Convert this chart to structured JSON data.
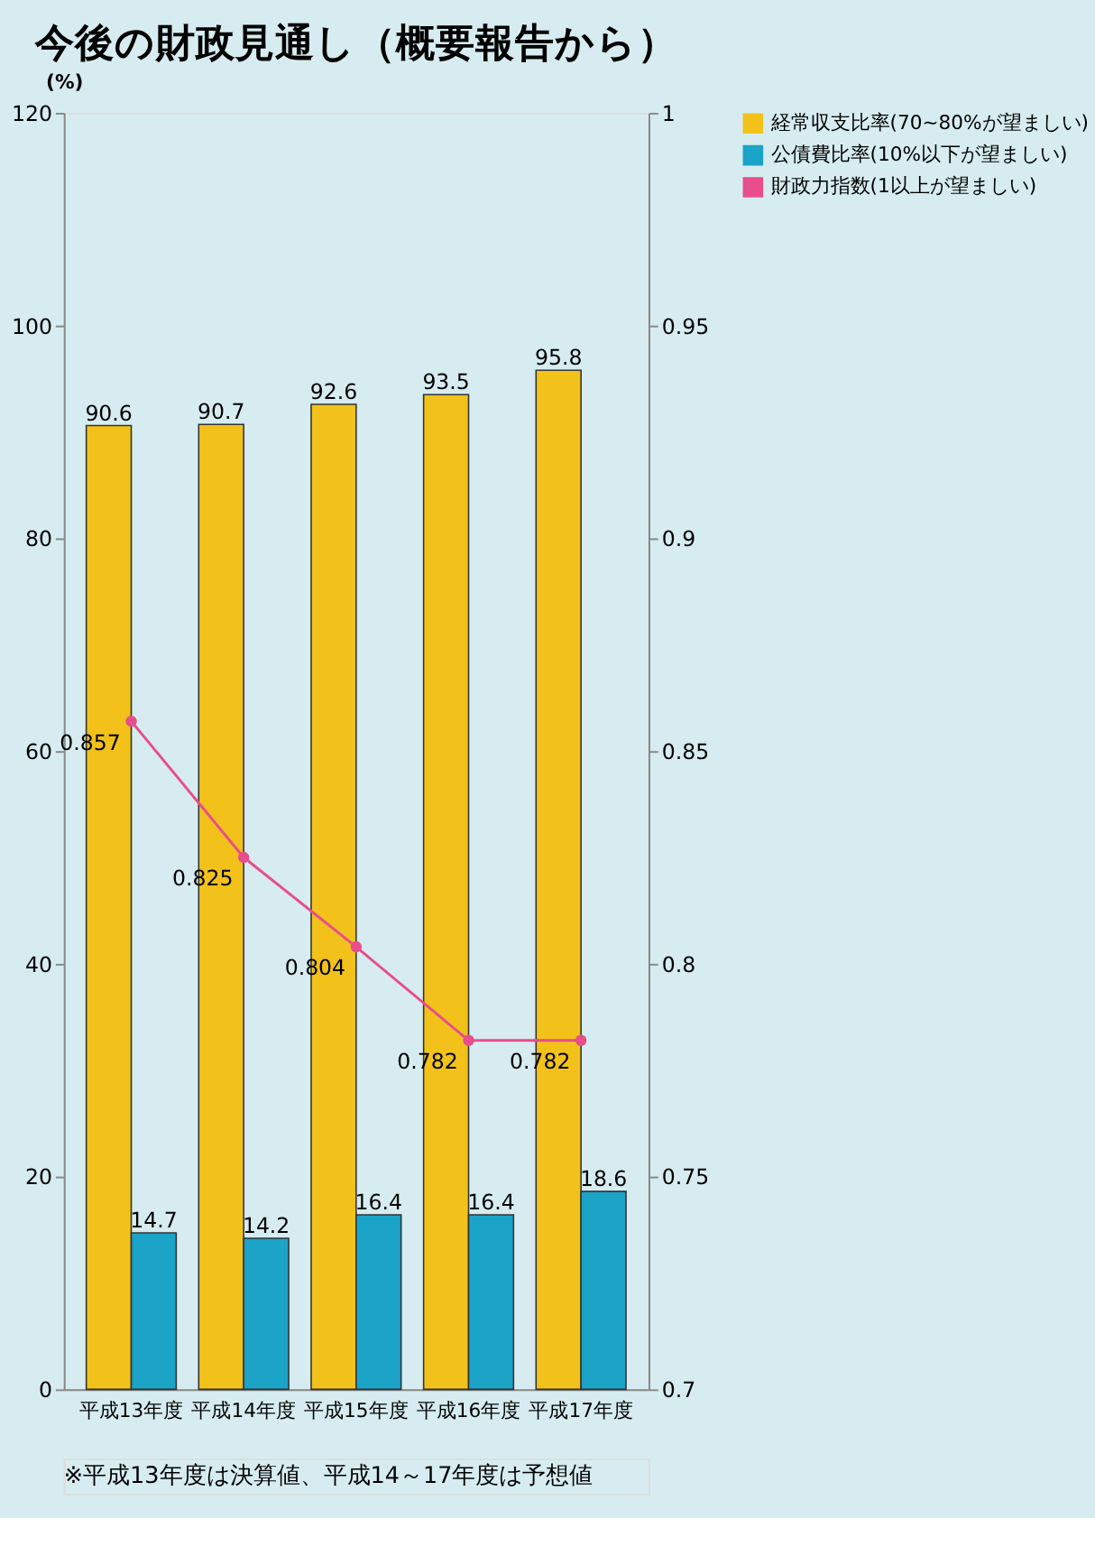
{
  "chart_data": {
    "type": "bar",
    "title": "今後の財政見通し（概要報告から）",
    "ylabel": "(%)",
    "categories": [
      "平成13年度",
      "平成14年度",
      "平成15年度",
      "平成16年度",
      "平成17年度"
    ],
    "series": [
      {
        "name": "経常収支比率(70~80%が望ましい)",
        "color": "#f2c21b",
        "values": [
          90.6,
          90.7,
          92.6,
          93.5,
          95.8
        ]
      },
      {
        "name": "公債費比率(10%以下が望ましい)",
        "color": "#1ba3c8",
        "values": [
          14.7,
          14.2,
          16.4,
          16.4,
          18.6
        ]
      },
      {
        "name": "財政力指数(1以上が望ましい)",
        "type": "line",
        "axis": "y2",
        "marker": "circle",
        "line_style": "solid",
        "color": "#e84d8c",
        "values": [
          0.857,
          0.825,
          0.804,
          0.782,
          0.782
        ]
      }
    ],
    "ylim": [
      0,
      120
    ],
    "yticks": [
      0,
      20,
      40,
      60,
      80,
      100,
      120
    ],
    "y2lim": [
      0.7,
      1
    ],
    "y2ticks": [
      0.7,
      0.75,
      0.8,
      0.85,
      0.9,
      0.95,
      1
    ],
    "data_labels": true,
    "grid": false,
    "legend": "right",
    "annotations": [
      "※平成13年度は決算値、平成14～17年度は予想値"
    ]
  }
}
